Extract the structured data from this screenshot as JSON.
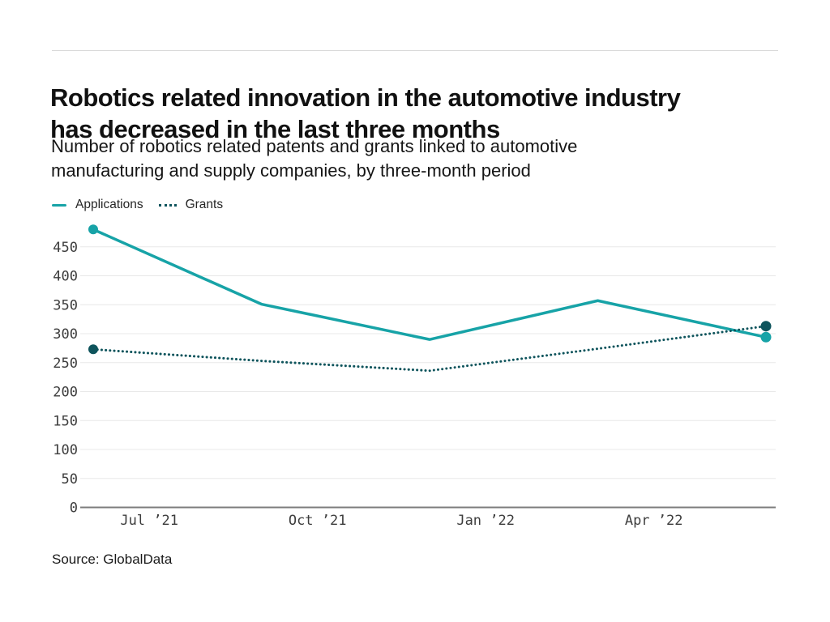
{
  "header": {
    "title_lines": [
      "Robotics related innovation in the automotive industry",
      "has decreased in the last three months"
    ],
    "subtitle_lines": [
      "Number of robotics related patents and grants linked to automotive",
      "manufacturing and supply companies, by three-month period"
    ]
  },
  "footer": {
    "source": "Source: GlobalData"
  },
  "chart_data": {
    "type": "line",
    "title": "Robotics related innovation in the automotive industry has decreased in the last three months",
    "subtitle": "Number of robotics related patents and grants linked to automotive manufacturing and supply companies, by three-month period",
    "x_months_offset": [
      0,
      3,
      6,
      9,
      12
    ],
    "series": [
      {
        "name": "Applications",
        "style": "solid",
        "color": "#17a3a7",
        "values": [
          480,
          351,
          290,
          357,
          294
        ]
      },
      {
        "name": "Grants",
        "style": "dotted",
        "color": "#0e545c",
        "values": [
          273,
          253,
          236,
          274,
          313
        ]
      }
    ],
    "x_ticks": [
      {
        "m": 1,
        "label": "Jul ’21"
      },
      {
        "m": 4,
        "label": "Oct ’21"
      },
      {
        "m": 7,
        "label": "Jan ’22"
      },
      {
        "m": 10,
        "label": "Apr ’22"
      }
    ],
    "y_ticks": [
      0,
      50,
      100,
      150,
      200,
      250,
      300,
      350,
      400,
      450
    ],
    "ylim": [
      0,
      500
    ],
    "grid": "horizontal",
    "legend_position": "top-left",
    "colors": {
      "gridline": "#e8e8e8",
      "axis_line": "#7d7d7d",
      "tick_text": "#3d3d3d"
    }
  }
}
